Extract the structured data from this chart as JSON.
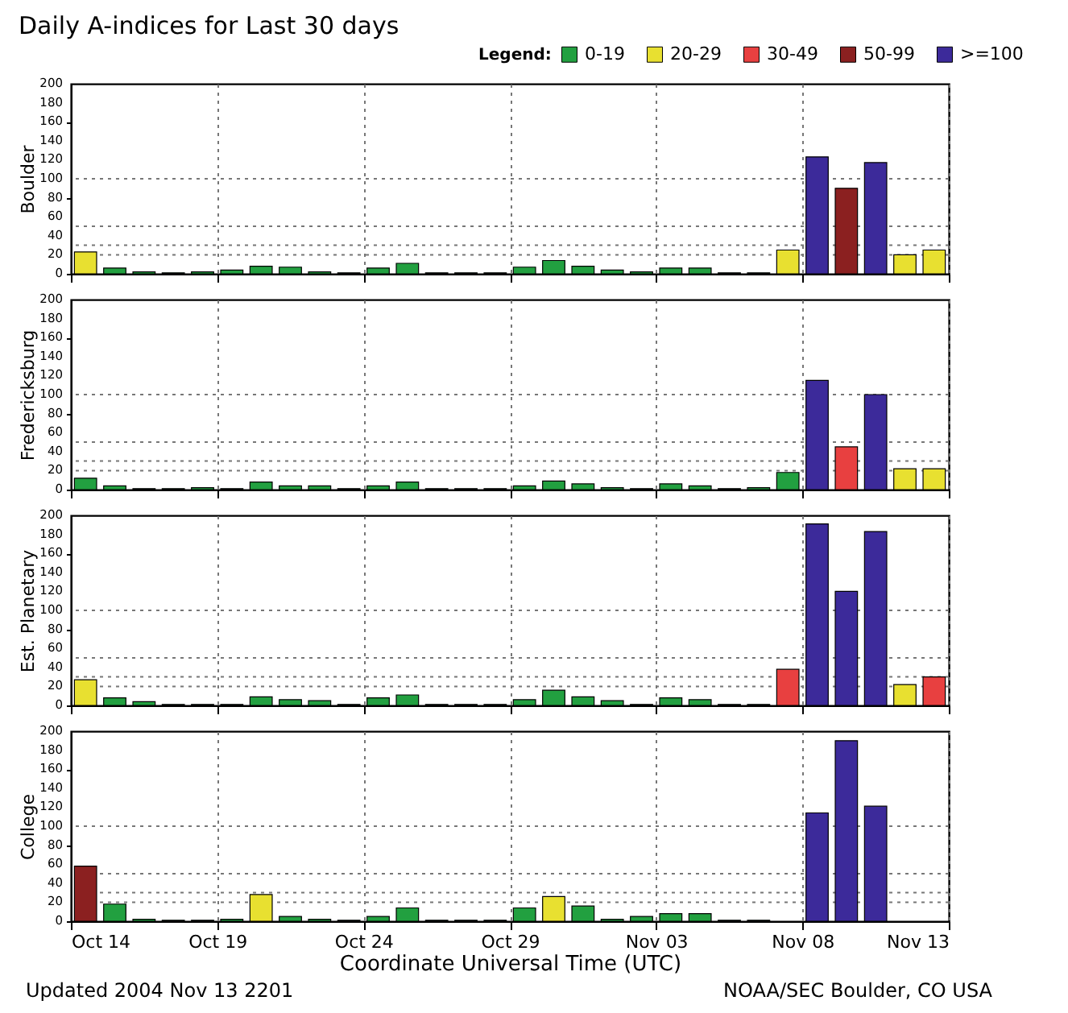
{
  "chart_data": [
    {
      "type": "bar",
      "title": "Daily A-indices for Last 30 days",
      "legend_title": "Legend:",
      "legend": "top right",
      "ylabel": "Boulder",
      "tick_labels": "y",
      "grid": "x",
      "x": [
        "2004-10-14",
        "2004-10-15",
        "2004-10-16",
        "2004-10-17",
        "2004-10-18",
        "2004-10-19",
        "2004-10-20",
        "2004-10-21",
        "2004-10-22",
        "2004-10-23",
        "2004-10-24",
        "2004-10-25",
        "2004-10-26",
        "2004-10-27",
        "2004-10-28",
        "2004-10-29",
        "2004-10-30",
        "2004-10-31",
        "2004-11-01",
        "2004-11-02",
        "2004-11-03",
        "2004-11-04",
        "2004-11-05",
        "2004-11-06",
        "2004-11-07",
        "2004-11-08",
        "2004-11-09",
        "2004-11-10",
        "2004-11-11",
        "2004-11-12"
      ],
      "xlim": [
        "2004-10-14",
        "2004-11-13"
      ],
      "xticks": [
        {
          "value": "2004-10-14",
          "label": null
        },
        {
          "value": "2004-10-19",
          "label": null
        },
        {
          "value": "2004-10-24",
          "label": null
        },
        {
          "value": "2004-10-29",
          "label": null
        },
        {
          "value": "2004-11-03",
          "label": null
        },
        {
          "value": "2004-11-08",
          "label": null
        },
        {
          "value": "2004-11-13",
          "label": null
        }
      ],
      "ylim": [
        0,
        200
      ],
      "yticks": [
        0,
        20,
        40,
        60,
        80,
        100,
        120,
        140,
        160,
        180,
        200
      ],
      "ref_lines": [
        {
          "axis": "y",
          "value": 20,
          "line_style": "dotted"
        },
        {
          "axis": "y",
          "value": 30,
          "line_style": "dotted"
        },
        {
          "axis": "y",
          "value": 50,
          "line_style": "dotted"
        },
        {
          "axis": "y",
          "value": 100,
          "line_style": "dotted"
        }
      ],
      "series": [
        {
          "name": "0-19",
          "color": "#22a040",
          "values": [
            null,
            6,
            2,
            1,
            2,
            4,
            8,
            7,
            2,
            1,
            6,
            11,
            1,
            1,
            1,
            7,
            14,
            8,
            4,
            2,
            6,
            6,
            1,
            1,
            null,
            null,
            null,
            null,
            null,
            null
          ]
        },
        {
          "name": "20-29",
          "color": "#e8e030",
          "values": [
            23,
            null,
            null,
            null,
            null,
            null,
            null,
            null,
            null,
            null,
            null,
            null,
            null,
            null,
            null,
            null,
            null,
            null,
            null,
            null,
            null,
            null,
            null,
            null,
            25,
            null,
            null,
            null,
            20,
            25
          ]
        },
        {
          "name": "30-49",
          "color": "#e84040",
          "values": [
            null,
            null,
            null,
            null,
            null,
            null,
            null,
            null,
            null,
            null,
            null,
            null,
            null,
            null,
            null,
            null,
            null,
            null,
            null,
            null,
            null,
            null,
            null,
            null,
            null,
            null,
            null,
            null,
            null,
            null
          ]
        },
        {
          "name": "50-99",
          "color": "#8b2020",
          "values": [
            null,
            null,
            null,
            null,
            null,
            null,
            null,
            null,
            null,
            null,
            null,
            null,
            null,
            null,
            null,
            null,
            null,
            null,
            null,
            null,
            null,
            null,
            null,
            null,
            null,
            null,
            90,
            null,
            null,
            null
          ]
        },
        {
          "name": ">=100",
          "color": "#3c2a9a",
          "values": [
            null,
            null,
            null,
            null,
            null,
            null,
            null,
            null,
            null,
            null,
            null,
            null,
            null,
            null,
            null,
            null,
            null,
            null,
            null,
            null,
            null,
            null,
            null,
            null,
            null,
            123,
            null,
            117,
            null,
            null
          ]
        }
      ]
    },
    {
      "type": "bar",
      "ylabel": "Fredericksburg",
      "tick_labels": "y",
      "grid": "x",
      "x": [
        "2004-10-14",
        "2004-10-15",
        "2004-10-16",
        "2004-10-17",
        "2004-10-18",
        "2004-10-19",
        "2004-10-20",
        "2004-10-21",
        "2004-10-22",
        "2004-10-23",
        "2004-10-24",
        "2004-10-25",
        "2004-10-26",
        "2004-10-27",
        "2004-10-28",
        "2004-10-29",
        "2004-10-30",
        "2004-10-31",
        "2004-11-01",
        "2004-11-02",
        "2004-11-03",
        "2004-11-04",
        "2004-11-05",
        "2004-11-06",
        "2004-11-07",
        "2004-11-08",
        "2004-11-09",
        "2004-11-10",
        "2004-11-11",
        "2004-11-12"
      ],
      "xlim": [
        "2004-10-14",
        "2004-11-13"
      ],
      "xticks": [
        {
          "value": "2004-10-14",
          "label": null
        },
        {
          "value": "2004-10-19",
          "label": null
        },
        {
          "value": "2004-10-24",
          "label": null
        },
        {
          "value": "2004-10-29",
          "label": null
        },
        {
          "value": "2004-11-03",
          "label": null
        },
        {
          "value": "2004-11-08",
          "label": null
        },
        {
          "value": "2004-11-13",
          "label": null
        }
      ],
      "ylim": [
        0,
        200
      ],
      "yticks": [
        0,
        20,
        40,
        60,
        80,
        100,
        120,
        140,
        160,
        180,
        200
      ],
      "ref_lines": [
        {
          "axis": "y",
          "value": 20,
          "line_style": "dotted"
        },
        {
          "axis": "y",
          "value": 30,
          "line_style": "dotted"
        },
        {
          "axis": "y",
          "value": 50,
          "line_style": "dotted"
        },
        {
          "axis": "y",
          "value": 100,
          "line_style": "dotted"
        }
      ],
      "series": [
        {
          "color": "#22a040",
          "values": [
            12,
            4,
            1,
            1,
            2,
            1,
            8,
            4,
            4,
            1,
            4,
            8,
            1,
            1,
            1,
            4,
            9,
            6,
            2,
            1,
            6,
            4,
            1,
            2,
            18,
            null,
            null,
            null,
            null,
            null
          ]
        },
        {
          "color": "#e8e030",
          "values": [
            null,
            null,
            null,
            null,
            null,
            null,
            null,
            null,
            null,
            null,
            null,
            null,
            null,
            null,
            null,
            null,
            null,
            null,
            null,
            null,
            null,
            null,
            null,
            null,
            null,
            null,
            null,
            null,
            22,
            22
          ]
        },
        {
          "color": "#e84040",
          "values": [
            null,
            null,
            null,
            null,
            null,
            null,
            null,
            null,
            null,
            null,
            null,
            null,
            null,
            null,
            null,
            null,
            null,
            null,
            null,
            null,
            null,
            null,
            null,
            null,
            null,
            null,
            45,
            null,
            null,
            null
          ]
        },
        {
          "color": "#3c2a9a",
          "values": [
            null,
            null,
            null,
            null,
            null,
            null,
            null,
            null,
            null,
            null,
            null,
            null,
            null,
            null,
            null,
            null,
            null,
            null,
            null,
            null,
            null,
            null,
            null,
            null,
            null,
            115,
            null,
            100,
            null,
            null
          ]
        }
      ]
    },
    {
      "type": "bar",
      "ylabel": "Est. Planetary",
      "tick_labels": "y",
      "grid": "x",
      "x": [
        "2004-10-14",
        "2004-10-15",
        "2004-10-16",
        "2004-10-17",
        "2004-10-18",
        "2004-10-19",
        "2004-10-20",
        "2004-10-21",
        "2004-10-22",
        "2004-10-23",
        "2004-10-24",
        "2004-10-25",
        "2004-10-26",
        "2004-10-27",
        "2004-10-28",
        "2004-10-29",
        "2004-10-30",
        "2004-10-31",
        "2004-11-01",
        "2004-11-02",
        "2004-11-03",
        "2004-11-04",
        "2004-11-05",
        "2004-11-06",
        "2004-11-07",
        "2004-11-08",
        "2004-11-09",
        "2004-11-10",
        "2004-11-11",
        "2004-11-12"
      ],
      "xlim": [
        "2004-10-14",
        "2004-11-13"
      ],
      "xticks": [
        {
          "value": "2004-10-14",
          "label": null
        },
        {
          "value": "2004-10-19",
          "label": null
        },
        {
          "value": "2004-10-24",
          "label": null
        },
        {
          "value": "2004-10-29",
          "label": null
        },
        {
          "value": "2004-11-03",
          "label": null
        },
        {
          "value": "2004-11-08",
          "label": null
        },
        {
          "value": "2004-11-13",
          "label": null
        }
      ],
      "ylim": [
        0,
        200
      ],
      "yticks": [
        0,
        20,
        40,
        60,
        80,
        100,
        120,
        140,
        160,
        180,
        200
      ],
      "ref_lines": [
        {
          "axis": "y",
          "value": 20,
          "line_style": "dotted"
        },
        {
          "axis": "y",
          "value": 30,
          "line_style": "dotted"
        },
        {
          "axis": "y",
          "value": 50,
          "line_style": "dotted"
        },
        {
          "axis": "y",
          "value": 100,
          "line_style": "dotted"
        }
      ],
      "series": [
        {
          "color": "#22a040",
          "values": [
            null,
            8,
            4,
            1,
            1,
            1,
            9,
            6,
            5,
            1,
            8,
            11,
            1,
            1,
            1,
            6,
            16,
            9,
            5,
            1,
            8,
            6,
            1,
            1,
            null,
            null,
            null,
            null,
            null,
            null
          ]
        },
        {
          "color": "#e8e030",
          "values": [
            27,
            null,
            null,
            null,
            null,
            null,
            null,
            null,
            null,
            null,
            null,
            null,
            null,
            null,
            null,
            null,
            null,
            null,
            null,
            null,
            null,
            null,
            null,
            null,
            null,
            null,
            null,
            null,
            22,
            null
          ]
        },
        {
          "color": "#e84040",
          "values": [
            null,
            null,
            null,
            null,
            null,
            null,
            null,
            null,
            null,
            null,
            null,
            null,
            null,
            null,
            null,
            null,
            null,
            null,
            null,
            null,
            null,
            null,
            null,
            null,
            38,
            null,
            null,
            null,
            null,
            30
          ]
        },
        {
          "color": "#3c2a9a",
          "values": [
            null,
            null,
            null,
            null,
            null,
            null,
            null,
            null,
            null,
            null,
            null,
            null,
            null,
            null,
            null,
            null,
            null,
            null,
            null,
            null,
            null,
            null,
            null,
            null,
            null,
            191,
            120,
            183,
            null,
            null
          ]
        }
      ]
    },
    {
      "type": "bar",
      "ylabel": "College",
      "xlabel": "Coordinate Universal Time (UTC)",
      "grid": "x",
      "x": [
        "2004-10-14",
        "2004-10-15",
        "2004-10-16",
        "2004-10-17",
        "2004-10-18",
        "2004-10-19",
        "2004-10-20",
        "2004-10-21",
        "2004-10-22",
        "2004-10-23",
        "2004-10-24",
        "2004-10-25",
        "2004-10-26",
        "2004-10-27",
        "2004-10-28",
        "2004-10-29",
        "2004-10-30",
        "2004-10-31",
        "2004-11-01",
        "2004-11-02",
        "2004-11-03",
        "2004-11-04",
        "2004-11-05",
        "2004-11-06",
        "2004-11-07",
        "2004-11-08",
        "2004-11-09",
        "2004-11-10",
        "2004-11-11",
        "2004-11-12"
      ],
      "xlim": [
        "2004-10-14",
        "2004-11-13"
      ],
      "xticks": [
        {
          "value": "2004-10-14",
          "label": "Oct 14"
        },
        {
          "value": "2004-10-19",
          "label": "Oct 19"
        },
        {
          "value": "2004-10-24",
          "label": "Oct 24"
        },
        {
          "value": "2004-10-29",
          "label": "Oct 29"
        },
        {
          "value": "2004-11-03",
          "label": "Nov 03"
        },
        {
          "value": "2004-11-08",
          "label": "Nov 08"
        },
        {
          "value": "2004-11-13",
          "label": "Nov 13"
        }
      ],
      "ylim": [
        0,
        200
      ],
      "yticks": [
        0,
        20,
        40,
        60,
        80,
        100,
        120,
        140,
        160,
        180,
        200
      ],
      "ref_lines": [
        {
          "axis": "y",
          "value": 20,
          "line_style": "dotted"
        },
        {
          "axis": "y",
          "value": 30,
          "line_style": "dotted"
        },
        {
          "axis": "y",
          "value": 50,
          "line_style": "dotted"
        },
        {
          "axis": "y",
          "value": 100,
          "line_style": "dotted"
        }
      ],
      "annotations": [
        "Updated 2004 Nov 13 2201",
        "NOAA/SEC Boulder, CO USA"
      ],
      "series": [
        {
          "color": "#22a040",
          "values": [
            null,
            18,
            2,
            1,
            1,
            2,
            null,
            5,
            2,
            1,
            5,
            14,
            1,
            1,
            1,
            14,
            null,
            16,
            2,
            5,
            8,
            8,
            1,
            1,
            0,
            null,
            null,
            null,
            0,
            0
          ]
        },
        {
          "color": "#e8e030",
          "values": [
            null,
            null,
            null,
            null,
            null,
            null,
            28,
            null,
            null,
            null,
            null,
            null,
            null,
            null,
            null,
            null,
            26,
            null,
            null,
            null,
            null,
            null,
            null,
            null,
            null,
            null,
            null,
            null,
            null,
            null
          ]
        },
        {
          "color": "#8b2020",
          "values": [
            58,
            null,
            null,
            null,
            null,
            null,
            null,
            null,
            null,
            null,
            null,
            null,
            null,
            null,
            null,
            null,
            null,
            null,
            null,
            null,
            null,
            null,
            null,
            null,
            null,
            null,
            null,
            null,
            null,
            null
          ]
        },
        {
          "color": "#3c2a9a",
          "values": [
            null,
            null,
            null,
            null,
            null,
            null,
            null,
            null,
            null,
            null,
            null,
            null,
            null,
            null,
            null,
            null,
            null,
            null,
            null,
            null,
            null,
            null,
            null,
            null,
            null,
            114,
            190,
            121,
            null,
            null
          ]
        }
      ]
    }
  ]
}
